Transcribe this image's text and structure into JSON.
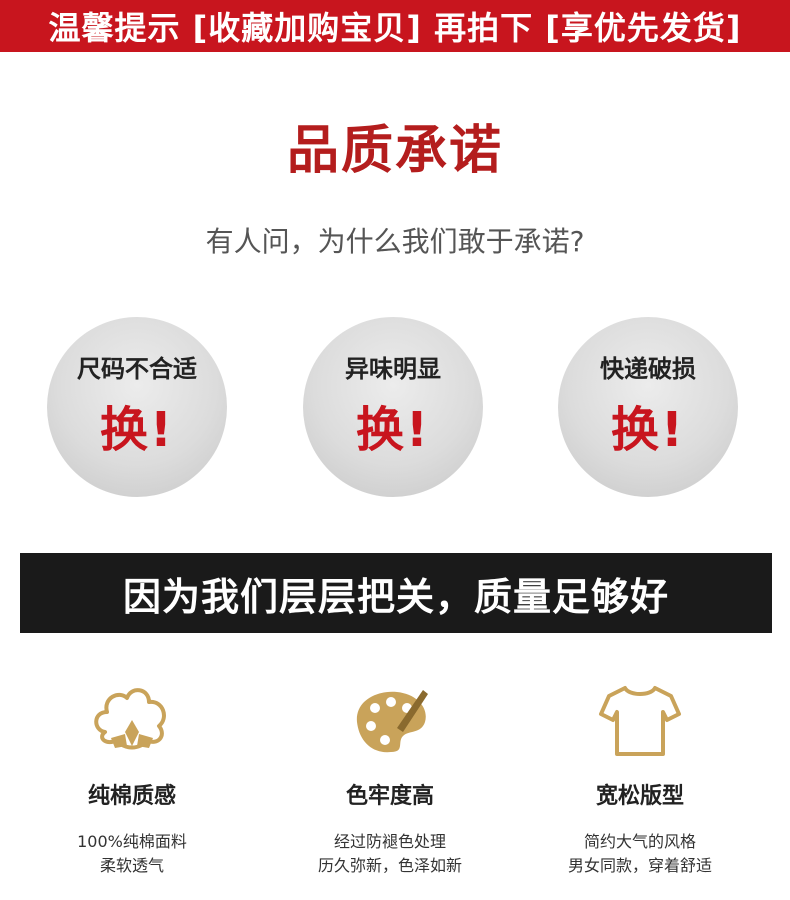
{
  "top_banner": {
    "text": "温馨提示 [收藏加购宝贝] 再拍下 [享优先发货]"
  },
  "section": {
    "title": "品质承诺",
    "question": "有人问，为什么我们敢于承诺?"
  },
  "promises": [
    {
      "label": "尺码不合适",
      "action": "换!"
    },
    {
      "label": "异味明显",
      "action": "换!"
    },
    {
      "label": "快递破损",
      "action": "换!"
    }
  ],
  "quality_banner": {
    "text": "因为我们层层把关，质量足够好"
  },
  "features": [
    {
      "icon": "cotton-icon",
      "title": "纯棉质感",
      "desc_line1": "100%纯棉面料",
      "desc_line2": "柔软透气"
    },
    {
      "icon": "palette-icon",
      "title": "色牢度高",
      "desc_line1": "经过防褪色处理",
      "desc_line2": "历久弥新，色泽如新"
    },
    {
      "icon": "tshirt-icon",
      "title": "宽松版型",
      "desc_line1": "简约大气的风格",
      "desc_line2": "男女同款，穿着舒适"
    }
  ],
  "colors": {
    "banner_red": "#c8151e",
    "title_red": "#b41d1d",
    "icon_gold": "#c9a35a",
    "dark_banner": "#1a1a1a"
  }
}
